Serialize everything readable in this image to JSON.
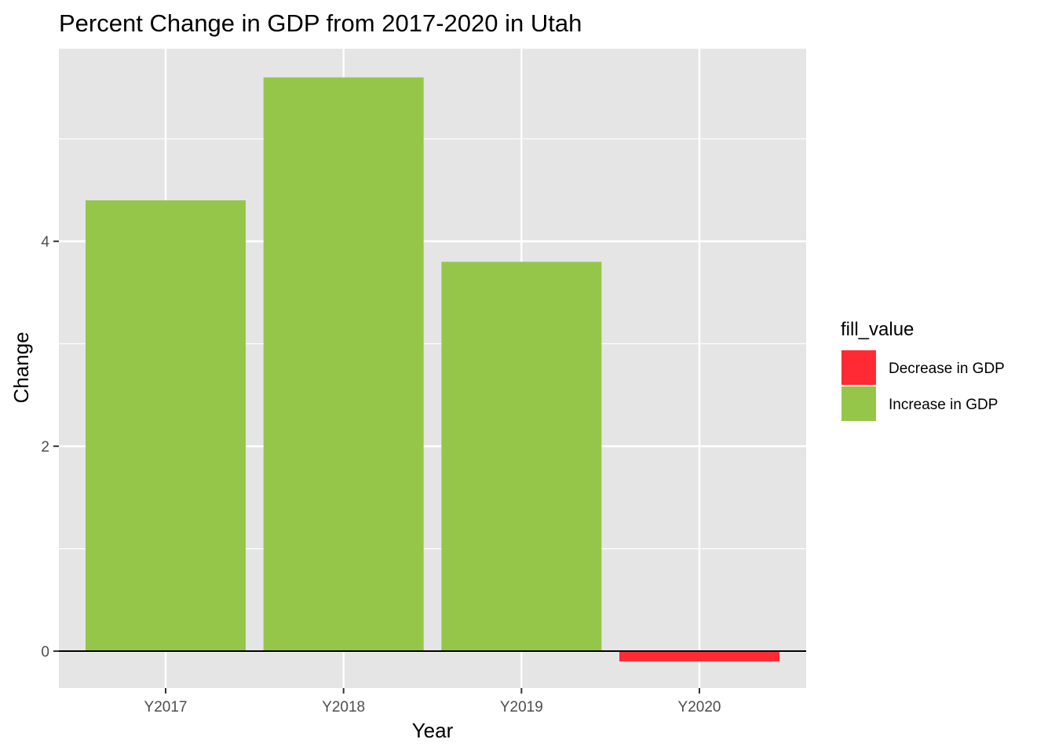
{
  "chart_data": {
    "type": "bar",
    "title": "Percent Change in GDP from 2017-2020 in Utah",
    "xlabel": "Year",
    "ylabel": "Change",
    "categories": [
      "Y2017",
      "Y2018",
      "Y2019",
      "Y2020"
    ],
    "values": [
      4.4,
      5.6,
      3.8,
      -0.1
    ],
    "fill_groups": [
      "Increase in GDP",
      "Increase in GDP",
      "Increase in GDP",
      "Decrease in GDP"
    ],
    "ylim": [
      -0.36,
      5.88
    ],
    "y_ticks": [
      0,
      2,
      4
    ],
    "grid": true,
    "reference_line_y": 0,
    "legend": {
      "title": "fill_value",
      "position": "right",
      "entries": [
        {
          "label": "Decrease in GDP",
          "color": "#ff2a34"
        },
        {
          "label": "Increase in GDP",
          "color": "#95c64a"
        }
      ]
    },
    "colors": {
      "panel_background": "#e5e5e5",
      "grid": "#ffffff",
      "reference_line": "#000000"
    }
  }
}
